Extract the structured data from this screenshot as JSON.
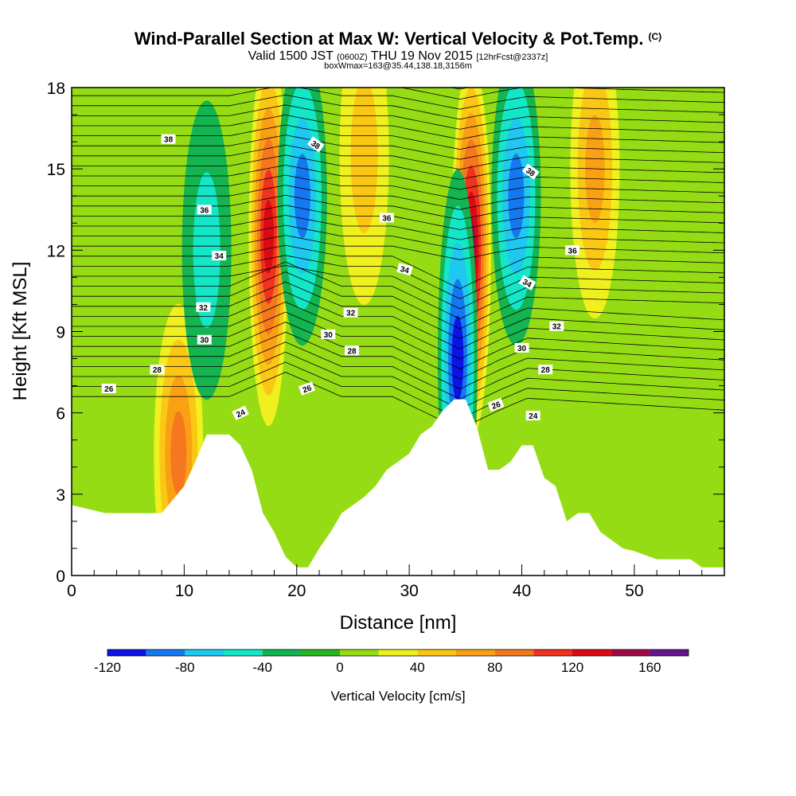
{
  "title": {
    "main": "Wind-Parallel Section at Max W: Vertical Velocity & Pot.Temp.",
    "copyright": "(C)",
    "valid_prefix": "Valid 1500 JST",
    "valid_zulu": "(0600Z)",
    "valid_date": "THU 19 Nov 2015",
    "forecast": "[12hrFcst@2337z]",
    "box_info": "boxWmax=163@35.44,138.18,3156m"
  },
  "colors": {
    "scale": [
      "#0a14e6",
      "#1478f0",
      "#1ec8f0",
      "#14e6c8",
      "#14b450",
      "#28b41e",
      "#96dc14",
      "#f0f01e",
      "#fac814",
      "#faa014",
      "#f5781e",
      "#f0321e",
      "#dc0a14",
      "#a00a46",
      "#64148c"
    ],
    "terrain": "#ffffff",
    "contour": "#000000"
  },
  "chart_data": {
    "type": "heatmap",
    "xlabel": "Distance [nm]",
    "ylabel": "Height [Kft MSL]",
    "xlim": [
      0,
      58
    ],
    "ylim": [
      0,
      18
    ],
    "xticks": [
      0,
      10,
      20,
      30,
      40,
      50
    ],
    "yticks": [
      0,
      3,
      6,
      9,
      12,
      15,
      18
    ],
    "colorbar": {
      "label": "Vertical Velocity [cm/s]",
      "ticks": [
        -120,
        -80,
        -40,
        0,
        40,
        80,
        120,
        160
      ],
      "range": [
        -120,
        180
      ],
      "interval": 20
    },
    "terrain_profile": {
      "x": [
        0,
        3,
        8,
        10,
        11,
        12,
        14,
        15,
        16,
        17,
        18,
        19,
        20,
        21,
        22,
        23,
        24,
        25,
        26,
        27,
        28,
        29,
        30,
        31,
        32,
        33,
        34,
        35,
        36,
        37,
        38,
        39,
        40,
        41,
        42,
        43,
        44,
        45,
        46,
        47,
        48,
        49,
        50,
        52,
        55,
        56,
        58
      ],
      "height": [
        2.6,
        2.3,
        2.3,
        3.3,
        4.2,
        5.2,
        5.2,
        4.8,
        3.9,
        2.3,
        1.6,
        0.7,
        0.3,
        0.3,
        1.0,
        1.6,
        2.3,
        2.6,
        2.9,
        3.3,
        3.9,
        4.2,
        4.5,
        5.2,
        5.5,
        6.1,
        6.5,
        6.5,
        5.5,
        3.9,
        3.9,
        4.2,
        4.8,
        4.8,
        3.6,
        3.3,
        2.0,
        2.3,
        2.3,
        1.6,
        1.3,
        1.0,
        0.9,
        0.6,
        0.6,
        0.3,
        0.3
      ]
    },
    "velocity_features": [
      {
        "x": 17.5,
        "height": 12.5,
        "peak": 130
      },
      {
        "x": 20.5,
        "height": 14.0,
        "peak": -95
      },
      {
        "x": 26.0,
        "height": 15.5,
        "peak": 40
      },
      {
        "x": 35.5,
        "height": 12.0,
        "peak": 150
      },
      {
        "x": 34.3,
        "height": 8.0,
        "peak": -115
      },
      {
        "x": 39.5,
        "height": 14.0,
        "peak": -80
      },
      {
        "x": 46.5,
        "height": 15.0,
        "peak": 75
      },
      {
        "x": 9.5,
        "height": 4.5,
        "peak": 80
      },
      {
        "x": 12.0,
        "height": 12.0,
        "peak": -40
      }
    ],
    "isentrope_labels": [
      {
        "text": "38",
        "x": 8.6,
        "height": 16.1
      },
      {
        "text": "38",
        "x": 21.7,
        "height": 15.9,
        "angle": 35
      },
      {
        "text": "38",
        "x": 40.8,
        "height": 14.9,
        "angle": 35
      },
      {
        "text": "36",
        "x": 11.8,
        "height": 13.5
      },
      {
        "text": "36",
        "x": 28.0,
        "height": 13.2
      },
      {
        "text": "36",
        "x": 44.5,
        "height": 12.0
      },
      {
        "text": "34",
        "x": 13.1,
        "height": 11.8
      },
      {
        "text": "34",
        "x": 29.6,
        "height": 11.3,
        "angle": 15
      },
      {
        "text": "34",
        "x": 40.5,
        "height": 10.8,
        "angle": 30
      },
      {
        "text": "32",
        "x": 11.7,
        "height": 9.9
      },
      {
        "text": "32",
        "x": 24.8,
        "height": 9.7
      },
      {
        "text": "32",
        "x": 43.1,
        "height": 9.2
      },
      {
        "text": "30",
        "x": 11.8,
        "height": 8.7
      },
      {
        "text": "30",
        "x": 22.8,
        "height": 8.9
      },
      {
        "text": "30",
        "x": 40.0,
        "height": 8.4
      },
      {
        "text": "28",
        "x": 7.6,
        "height": 7.6
      },
      {
        "text": "28",
        "x": 24.9,
        "height": 8.3
      },
      {
        "text": "28",
        "x": 42.1,
        "height": 7.6
      },
      {
        "text": "26",
        "x": 3.3,
        "height": 6.9
      },
      {
        "text": "26",
        "x": 20.9,
        "height": 6.9,
        "angle": -20
      },
      {
        "text": "26",
        "x": 37.7,
        "height": 6.3,
        "angle": -20
      },
      {
        "text": "24",
        "x": 15.0,
        "height": 6.0,
        "angle": -25
      },
      {
        "text": "24",
        "x": 41.0,
        "height": 5.9
      }
    ]
  }
}
